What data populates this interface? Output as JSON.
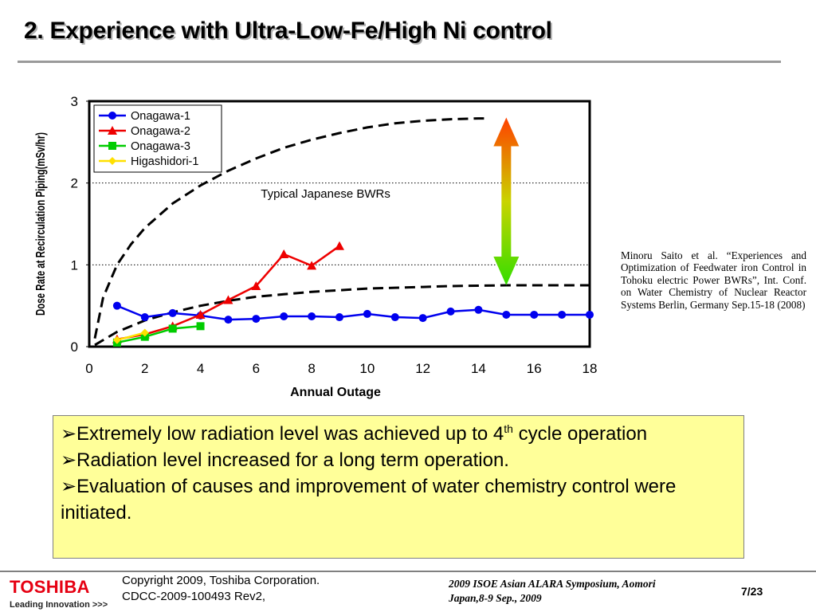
{
  "slide": {
    "title": "2. Experience with Ultra-Low-Fe/High Ni control",
    "citation": "Minoru Saito et al. “Experiences and Optimization of Feedwater iron Control in Tohoku electric Power BWRs”, Int. Conf. on Water Chemistry of Nuclear Reactor Systems Berlin, Germany Sep.15-18 (2008)",
    "bullets": [
      {
        "text": "Extremely low radiation level was achieved up to 4",
        "sup": "th",
        "tail": " cycle operation"
      },
      {
        "text": "Radiation level increased for a long term operation."
      },
      {
        "text": "Evaluation of causes and improvement of water chemistry control were initiated."
      }
    ],
    "bullet_marker": "➢"
  },
  "footer": {
    "logo_word": "TOSHIBA",
    "logo_tag": "Leading Innovation >>>",
    "copyright_line1": "Copyright 2009, Toshiba Corporation.",
    "copyright_line2": "CDCC-2009-100493 Rev2,",
    "symposium_line1": "2009 ISOE Asian ALARA Symposium, Aomori",
    "symposium_line2": "Japan,8-9 Sep., 2009",
    "page": "7/23"
  },
  "chart_data": {
    "type": "line",
    "xlabel": "Annual Outage",
    "ylabel": "Dose Rate at Recirculation Piping(mSv/hr)",
    "xlim": [
      0,
      18
    ],
    "ylim": [
      0,
      3
    ],
    "xticks": [
      "0",
      "2",
      "4",
      "6",
      "8",
      "10",
      "12",
      "14",
      "16",
      "18"
    ],
    "yticks": [
      "0",
      "1",
      "2",
      "3"
    ],
    "grid": "horizontal dotted at y=1 and y=2",
    "legend_position": "top-left",
    "annotation": "Typical Japanese BWRs",
    "series": [
      {
        "name": "Onagawa-1",
        "color": "#0000ee",
        "marker": "circle",
        "x": [
          1,
          2,
          3,
          4,
          5,
          6,
          7,
          8,
          9,
          10,
          11,
          12,
          13,
          14,
          15,
          16,
          17,
          18
        ],
        "y": [
          0.5,
          0.36,
          0.41,
          0.38,
          0.33,
          0.34,
          0.37,
          0.37,
          0.36,
          0.4,
          0.36,
          0.35,
          0.43,
          0.45,
          0.39,
          0.39,
          0.39,
          0.39
        ]
      },
      {
        "name": "Onagawa-2",
        "color": "#ee0000",
        "marker": "triangle",
        "x": [
          1,
          2,
          3,
          4,
          5,
          6,
          7,
          8,
          9
        ],
        "y": [
          0.09,
          0.15,
          0.25,
          0.39,
          0.57,
          0.74,
          1.13,
          0.99,
          1.23
        ]
      },
      {
        "name": "Onagawa-3",
        "color": "#00cc00",
        "marker": "square",
        "x": [
          1,
          2,
          3,
          4
        ],
        "y": [
          0.05,
          0.12,
          0.22,
          0.25
        ]
      },
      {
        "name": "Higashidori-1",
        "color": "#ffe000",
        "marker": "diamond",
        "x": [
          1,
          2
        ],
        "y": [
          0.08,
          0.17
        ]
      }
    ],
    "envelope_upper": {
      "x": [
        0.2,
        0.5,
        1,
        1.5,
        2,
        3,
        4,
        5,
        6,
        7,
        8,
        9,
        10,
        11,
        12,
        13,
        14,
        14.2
      ],
      "y": [
        0.1,
        0.6,
        1.0,
        1.25,
        1.45,
        1.75,
        1.97,
        2.15,
        2.3,
        2.43,
        2.53,
        2.61,
        2.68,
        2.73,
        2.76,
        2.78,
        2.79,
        2.79
      ]
    },
    "envelope_lower": {
      "x": [
        0.2,
        1,
        2,
        3,
        4,
        5,
        6,
        7,
        8,
        9,
        10,
        11,
        12,
        13,
        14,
        15,
        16,
        17,
        18
      ],
      "y": [
        0.02,
        0.18,
        0.32,
        0.42,
        0.5,
        0.56,
        0.61,
        0.64,
        0.67,
        0.69,
        0.71,
        0.72,
        0.73,
        0.74,
        0.745,
        0.75,
        0.75,
        0.75,
        0.75
      ]
    },
    "arrow": {
      "x": 15,
      "y_top": 2.8,
      "y_bottom": 0.75,
      "color_top": "#ff4000",
      "color_bottom": "#33dd00"
    }
  }
}
